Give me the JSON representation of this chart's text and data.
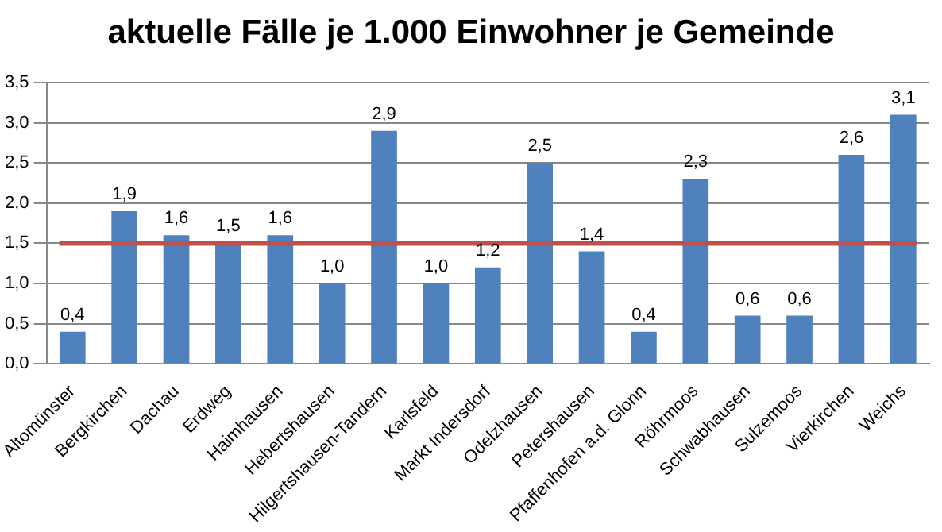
{
  "chart_data": {
    "type": "bar",
    "title": "aktuelle Fälle je 1.000 Einwohner je Gemeinde",
    "categories": [
      "Altomünster",
      "Bergkirchen",
      "Dachau",
      "Erdweg",
      "Haimhausen",
      "Hebertshausen",
      "Hilgertshausen-Tandern",
      "Karlsfeld",
      "Markt Indersdorf",
      "Odelzhausen",
      "Petershausen",
      "Pfaffenhofen a.d. Glonn",
      "Röhrmoos",
      "Schwabhausen",
      "Sulzemoos",
      "Vierkirchen",
      "Weichs"
    ],
    "values": [
      0.4,
      1.9,
      1.6,
      1.5,
      1.6,
      1.0,
      2.9,
      1.0,
      1.2,
      2.5,
      1.4,
      0.4,
      2.3,
      0.6,
      0.6,
      2.6,
      3.1
    ],
    "value_labels": [
      "0,4",
      "1,9",
      "1,6",
      "1,5",
      "1,6",
      "1,0",
      "2,9",
      "1,0",
      "1,2",
      "2,5",
      "1,4",
      "0,4",
      "2,3",
      "0,6",
      "0,6",
      "2,6",
      "3,1"
    ],
    "color": "#4f81bd",
    "ylim": [
      0,
      3.5
    ],
    "yticks": [
      {
        "value": 0,
        "label": "0,0"
      },
      {
        "value": 0.5,
        "label": "0,5"
      },
      {
        "value": 1,
        "label": "1,0"
      },
      {
        "value": 1.5,
        "label": "1,5"
      },
      {
        "value": 2,
        "label": "2,0"
      },
      {
        "value": 2.5,
        "label": "2,5"
      },
      {
        "value": 3,
        "label": "3,0"
      },
      {
        "value": 3.5,
        "label": "3,5"
      }
    ],
    "grid": "y",
    "legend": false,
    "ref_lines": [
      {
        "axis": "y",
        "value": 1.5,
        "color": "#c0504d"
      }
    ]
  }
}
